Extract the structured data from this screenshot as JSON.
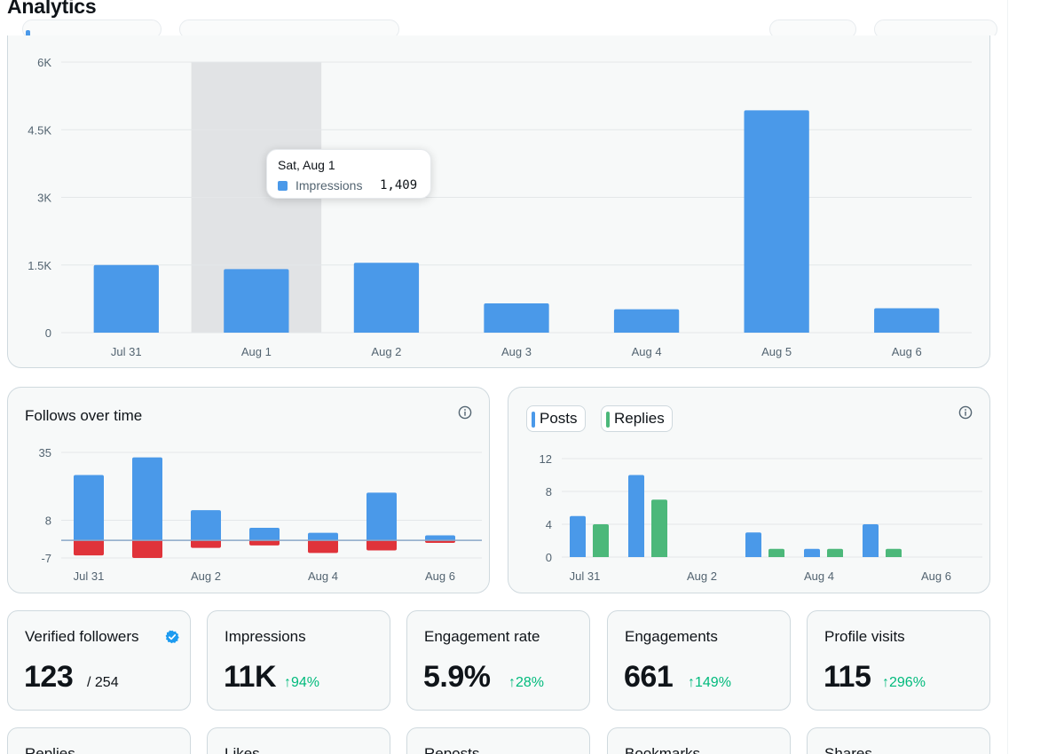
{
  "header": {
    "title": "Analytics"
  },
  "impressions_chart": {
    "tooltip": {
      "title": "Sat, Aug 1",
      "series": "Impressions",
      "value": "1,409"
    },
    "highlighted_index": 1,
    "colors": {
      "bar": "#4a99e9",
      "highlight": "#e1e3e5",
      "grid": "#e4e7e9"
    }
  },
  "follows_card": {
    "title": "Follows over time",
    "info_icon": "info-icon"
  },
  "posts_card": {
    "legend": [
      {
        "label": "Posts",
        "color": "#4a99e9"
      },
      {
        "label": "Replies",
        "color": "#4cb87a"
      }
    ],
    "info_icon": "info-icon"
  },
  "stats": [
    {
      "label": "Verified followers",
      "value": "123",
      "sub": "/ 254",
      "icon": "verified-badge-icon"
    },
    {
      "label": "Impressions",
      "value": "11K",
      "delta": "↑94%"
    },
    {
      "label": "Engagement rate",
      "value": "5.9%",
      "delta": "↑28%"
    },
    {
      "label": "Engagements",
      "value": "661",
      "delta": "↑149%"
    },
    {
      "label": "Profile visits",
      "value": "115",
      "delta": "↑296%"
    }
  ],
  "stats_row2": [
    {
      "label": "Replies"
    },
    {
      "label": "Likes"
    },
    {
      "label": "Reposts"
    },
    {
      "label": "Bookmarks"
    },
    {
      "label": "Shares"
    }
  ],
  "chart_data": [
    {
      "type": "bar",
      "categories": [
        "Jul 31",
        "Aug 1",
        "Aug 2",
        "Aug 3",
        "Aug 4",
        "Aug 5",
        "Aug 6"
      ],
      "series": [
        {
          "name": "Impressions",
          "values": [
            1500,
            1409,
            1550,
            650,
            520,
            4930,
            540
          ]
        }
      ],
      "yticks": [
        "0",
        "1.5K",
        "3K",
        "4.5K",
        "6K"
      ],
      "ylim": [
        0,
        6000
      ],
      "grid": true
    },
    {
      "type": "bar",
      "title": "Follows over time",
      "categories": [
        "Jul 31",
        "",
        "Aug 2",
        "",
        "Aug 4",
        "",
        "Aug 6"
      ],
      "series": [
        {
          "values": [
            26,
            33,
            12,
            5,
            3,
            19,
            2
          ]
        },
        {
          "values": [
            -6,
            -7,
            -3,
            -2,
            -5,
            -4,
            -1
          ]
        }
      ],
      "yticks": [
        "-7",
        "8",
        "35"
      ],
      "ylim": [
        -7,
        35
      ],
      "stacked": true,
      "grid": true
    },
    {
      "type": "bar",
      "categories": [
        "Jul 31",
        "",
        "Aug 2",
        "",
        "Aug 4",
        "",
        "Aug 6"
      ],
      "series": [
        {
          "name": "Posts",
          "values": [
            5,
            10,
            0,
            3,
            1,
            4,
            0
          ]
        },
        {
          "name": "Replies",
          "values": [
            4,
            7,
            0,
            1,
            1,
            1,
            0
          ]
        }
      ],
      "yticks": [
        "0",
        "4",
        "8",
        "12"
      ],
      "ylim": [
        0,
        12
      ],
      "grid": true
    }
  ]
}
